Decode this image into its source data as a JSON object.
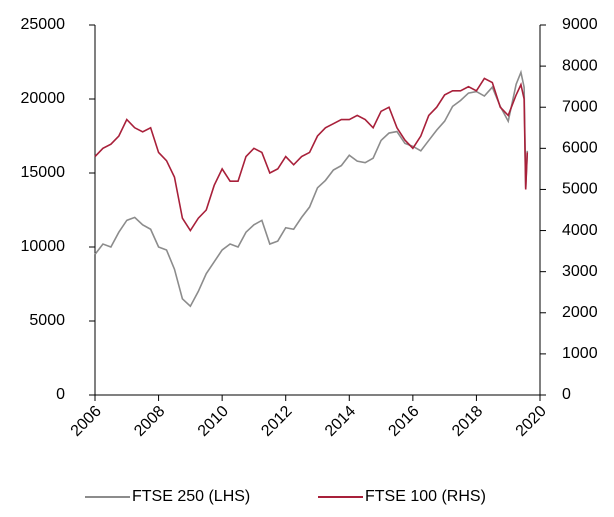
{
  "chart_data": {
    "type": "line",
    "x": [
      2006,
      2006.25,
      2006.5,
      2006.75,
      2007,
      2007.25,
      2007.5,
      2007.75,
      2008,
      2008.25,
      2008.5,
      2008.75,
      2009,
      2009.25,
      2009.5,
      2009.75,
      2010,
      2010.25,
      2010.5,
      2010.75,
      2011,
      2011.25,
      2011.5,
      2011.75,
      2012,
      2012.25,
      2012.5,
      2012.75,
      2013,
      2013.25,
      2013.5,
      2013.75,
      2014,
      2014.25,
      2014.5,
      2014.75,
      2015,
      2015.25,
      2015.5,
      2015.75,
      2016,
      2016.25,
      2016.5,
      2016.75,
      2017,
      2017.25,
      2017.5,
      2017.75,
      2018,
      2018.25,
      2018.5,
      2018.75,
      2019,
      2019.25,
      2019.4,
      2019.5,
      2019.55,
      2019.6
    ],
    "series": [
      {
        "name": "FTSE 250 (LHS)",
        "color": "#8c8c8c",
        "axis": "y",
        "values": [
          9500,
          10200,
          10000,
          11000,
          11800,
          12000,
          11500,
          11200,
          10000,
          9800,
          8500,
          6500,
          6000,
          7000,
          8200,
          9000,
          9800,
          10200,
          10000,
          11000,
          11500,
          11800,
          10200,
          10400,
          11300,
          11200,
          12000,
          12700,
          14000,
          14500,
          15200,
          15500,
          16200,
          15800,
          15700,
          16000,
          17200,
          17700,
          17800,
          17000,
          16800,
          16500,
          17200,
          17900,
          18500,
          19500,
          19900,
          20400,
          20500,
          20200,
          20800,
          19500,
          18500,
          21000,
          21800,
          20800,
          14000,
          16500
        ]
      },
      {
        "name": "FTSE 100 (RHS)",
        "color": "#a8203a",
        "axis": "y2",
        "values": [
          5800,
          6000,
          6100,
          6300,
          6700,
          6500,
          6400,
          6500,
          5900,
          5700,
          5300,
          4300,
          4000,
          4300,
          4500,
          5100,
          5500,
          5200,
          5200,
          5800,
          6000,
          5900,
          5400,
          5500,
          5800,
          5600,
          5800,
          5900,
          6300,
          6500,
          6600,
          6700,
          6700,
          6800,
          6700,
          6500,
          6900,
          7000,
          6500,
          6200,
          6000,
          6300,
          6800,
          7000,
          7300,
          7400,
          7400,
          7500,
          7400,
          7700,
          7600,
          7000,
          6800,
          7300,
          7550,
          7200,
          5000,
          5900
        ]
      }
    ],
    "xlim": [
      2006,
      2020
    ],
    "xticks": [
      2006,
      2008,
      2010,
      2012,
      2014,
      2016,
      2018,
      2020
    ],
    "ylim": [
      0,
      25000
    ],
    "yticks": [
      0,
      5000,
      10000,
      15000,
      20000,
      25000
    ],
    "y2lim": [
      0,
      9000
    ],
    "y2ticks": [
      0,
      1000,
      2000,
      3000,
      4000,
      5000,
      6000,
      7000,
      8000,
      9000
    ],
    "legend": "bottom"
  }
}
